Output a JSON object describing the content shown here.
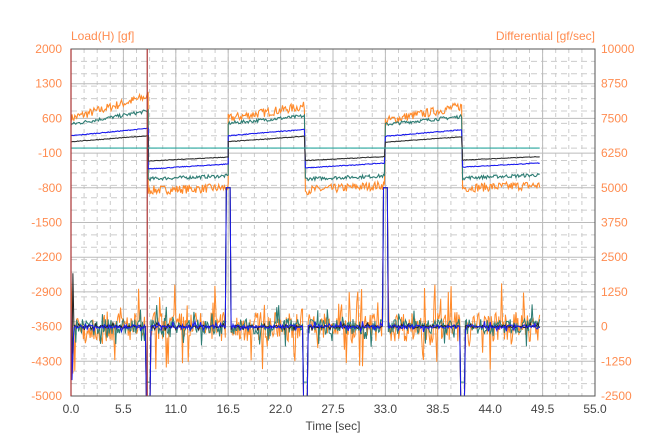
{
  "chart_data": {
    "type": "line",
    "left_axis": {
      "label": "Load(H) [gf]",
      "ylim": [
        -5000,
        2000
      ],
      "ticks": [
        2000,
        1300,
        600,
        -100,
        -800,
        -1500,
        -2200,
        -2900,
        -3600,
        -4300,
        -5000
      ]
    },
    "right_axis": {
      "label": "Differential [gf/sec]",
      "ylim": [
        -2500,
        10000
      ],
      "ticks": [
        10000,
        8750,
        7500,
        6250,
        5000,
        3750,
        2500,
        1250,
        0,
        -1250,
        -2500
      ]
    },
    "x_axis": {
      "label": "Time [sec]",
      "xlim": [
        0,
        55
      ],
      "ticks": [
        "0.0",
        "5.5",
        "11.0",
        "16.5",
        "22.0",
        "27.5",
        "33.0",
        "38.5",
        "44.0",
        "49.5",
        "55.0"
      ]
    },
    "grid": true,
    "cursor_time": 8.0,
    "phase_boundaries": [
      0,
      8.1,
      16.5,
      24.6,
      33.0,
      41.1,
      49.3
    ],
    "load_series": [
      {
        "name": "load-orange",
        "color": "#ff8a2a",
        "noise": 90,
        "phases": [
          [
            600,
            1050
          ],
          [
            -850,
            -800
          ],
          [
            600,
            850
          ],
          [
            -850,
            -750
          ],
          [
            550,
            850
          ],
          [
            -800,
            -750
          ]
        ]
      },
      {
        "name": "load-teal",
        "color": "#2e7d74",
        "noise": 35,
        "phases": [
          [
            480,
            750
          ],
          [
            -620,
            -560
          ],
          [
            500,
            650
          ],
          [
            -620,
            -560
          ],
          [
            480,
            640
          ],
          [
            -600,
            -540
          ]
        ]
      },
      {
        "name": "load-blue",
        "color": "#1a1aee",
        "noise": 8,
        "phases": [
          [
            250,
            400
          ],
          [
            -420,
            -320
          ],
          [
            250,
            380
          ],
          [
            -400,
            -300
          ],
          [
            240,
            370
          ],
          [
            -380,
            -300
          ]
        ]
      },
      {
        "name": "load-black",
        "color": "#333333",
        "noise": 6,
        "phases": [
          [
            130,
            250
          ],
          [
            -260,
            -180
          ],
          [
            130,
            240
          ],
          [
            -250,
            -170
          ],
          [
            120,
            230
          ],
          [
            -240,
            -170
          ]
        ]
      },
      {
        "name": "load-zero",
        "color": "#2aa8a0",
        "noise": 0,
        "phases": [
          [
            0,
            0
          ],
          [
            0,
            0
          ],
          [
            0,
            0
          ],
          [
            0,
            0
          ],
          [
            0,
            0
          ],
          [
            0,
            0
          ]
        ]
      }
    ],
    "differential_series": [
      {
        "name": "diff-orange",
        "color": "#ff8a2a",
        "noise": 900,
        "spike": -2500
      },
      {
        "name": "diff-teal",
        "color": "#2e7d74",
        "noise": 450,
        "spike": -2000
      },
      {
        "name": "diff-black",
        "color": "#222222",
        "noise": 80,
        "spike": -2500
      },
      {
        "name": "diff-blue",
        "color": "#1a1aee",
        "noise": 110,
        "spike": -2500
      }
    ]
  }
}
